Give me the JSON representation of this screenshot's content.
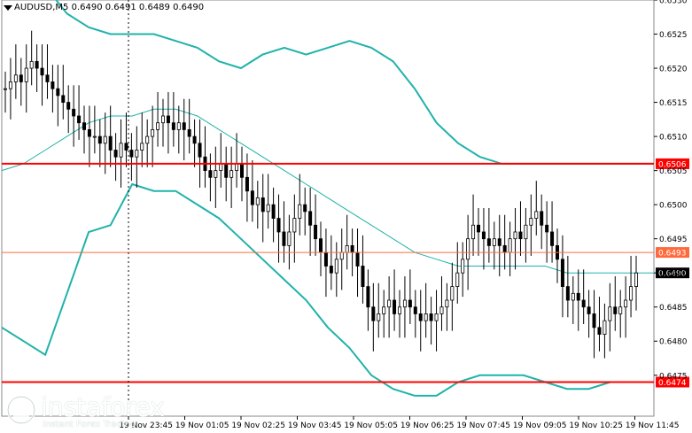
{
  "header": {
    "symbol_line": "AUDUSD,M5  0.6490 0.6491 0.6489 0.6490"
  },
  "watermark": {
    "brand": "instaforex",
    "tagline": "Instant Forex Trading"
  },
  "colors": {
    "background": "#ffffff",
    "candle": "#000000",
    "bollinger_band": "#20b2aa",
    "moving_average": "#20b2aa",
    "level_line": "#ff0000",
    "current_line": "#ff6a3d",
    "grid": "#c8c8c8"
  },
  "chart_data": {
    "type": "candlestick",
    "symbol": "AUDUSD",
    "timeframe": "M5",
    "ohlc_header": {
      "open": 0.649,
      "high": 0.6491,
      "low": 0.6489,
      "close": 0.649
    },
    "ylim": [
      0.6469,
      0.653
    ],
    "y_ticks": [
      "0.6530",
      "0.6525",
      "0.6520",
      "0.6515",
      "0.6510",
      "0.6505",
      "0.6500",
      "0.6495",
      "0.6490",
      "0.6485",
      "0.6480",
      "0.6475"
    ],
    "x_ticks": [
      "19 Nov 23:45",
      "19 Nov 01:05",
      "19 Nov 02:25",
      "19 Nov 03:45",
      "19 Nov 05:05",
      "19 Nov 06:25",
      "19 Nov 07:45",
      "19 Nov 09:05",
      "19 Nov 10:25",
      "19 Nov 11:45"
    ],
    "horizontal_levels": [
      {
        "value": 0.6506,
        "label": "0.6506",
        "style": "red-thick"
      },
      {
        "value": 0.6493,
        "label": "0.6493",
        "style": "orange-thin"
      },
      {
        "value": 0.6474,
        "label": "0.6474",
        "style": "red-thick"
      }
    ],
    "current_price": {
      "value": 0.649,
      "label": "0.6490"
    },
    "candle_closes": [
      0.6517,
      0.6518,
      0.6519,
      0.6518,
      0.652,
      0.6521,
      0.652,
      0.6519,
      0.6518,
      0.6517,
      0.6516,
      0.6515,
      0.6514,
      0.6513,
      0.6512,
      0.6511,
      0.651,
      0.651,
      0.6509,
      0.651,
      0.6508,
      0.6507,
      0.6509,
      0.6508,
      0.6507,
      0.6508,
      0.6509,
      0.651,
      0.6511,
      0.6512,
      0.6513,
      0.6512,
      0.6511,
      0.6512,
      0.6511,
      0.651,
      0.6509,
      0.6507,
      0.6505,
      0.6504,
      0.6505,
      0.6506,
      0.6504,
      0.6505,
      0.6506,
      0.6504,
      0.6502,
      0.65,
      0.6501,
      0.6499,
      0.65,
      0.6498,
      0.6496,
      0.6494,
      0.6496,
      0.6498,
      0.65,
      0.6499,
      0.6497,
      0.6495,
      0.6493,
      0.6491,
      0.649,
      0.6492,
      0.6493,
      0.6494,
      0.6493,
      0.6491,
      0.6488,
      0.6485,
      0.6483,
      0.6484,
      0.6485,
      0.6486,
      0.6484,
      0.6485,
      0.6486,
      0.6485,
      0.6484,
      0.6483,
      0.6484,
      0.6483,
      0.6484,
      0.6485,
      0.6486,
      0.6488,
      0.649,
      0.6492,
      0.6495,
      0.6497,
      0.6496,
      0.6495,
      0.6494,
      0.6495,
      0.6494,
      0.6493,
      0.6495,
      0.6496,
      0.6495,
      0.6497,
      0.6498,
      0.6499,
      0.6497,
      0.6496,
      0.6494,
      0.6492,
      0.6488,
      0.6486,
      0.6487,
      0.6486,
      0.6485,
      0.6484,
      0.6482,
      0.6481,
      0.6483,
      0.6485,
      0.6484,
      0.6485,
      0.6486,
      0.6488,
      0.649
    ],
    "bb_upper": [
      0.6535,
      0.6534,
      0.6532,
      0.6528,
      0.6526,
      0.6525,
      0.6525,
      0.6525,
      0.6524,
      0.6523,
      0.6521,
      0.652,
      0.6522,
      0.6523,
      0.6522,
      0.6523,
      0.6524,
      0.6523,
      0.6521,
      0.6517,
      0.6512,
      0.6509,
      0.6507,
      0.6506,
      0.6506,
      0.6506,
      0.6506,
      0.6506,
      0.6506,
      0.6506,
      0.6506
    ],
    "bb_middle": [
      0.6505,
      0.6506,
      0.6508,
      0.651,
      0.6512,
      0.6513,
      0.6513,
      0.6514,
      0.6514,
      0.6513,
      0.6511,
      0.6509,
      0.6507,
      0.6505,
      0.6503,
      0.6501,
      0.6499,
      0.6497,
      0.6495,
      0.6493,
      0.6492,
      0.6491,
      0.6491,
      0.6491,
      0.6491,
      0.6491,
      0.649,
      0.649,
      0.649,
      0.649,
      0.649
    ],
    "bb_lower": [
      0.6482,
      0.648,
      0.6478,
      0.6487,
      0.6496,
      0.6497,
      0.6503,
      0.6502,
      0.6502,
      0.65,
      0.6498,
      0.6495,
      0.6492,
      0.6489,
      0.6486,
      0.6482,
      0.6479,
      0.6475,
      0.6473,
      0.6472,
      0.6472,
      0.6474,
      0.6475,
      0.6475,
      0.6475,
      0.6474,
      0.6473,
      0.6473,
      0.6474,
      0.6474,
      0.6474
    ]
  }
}
